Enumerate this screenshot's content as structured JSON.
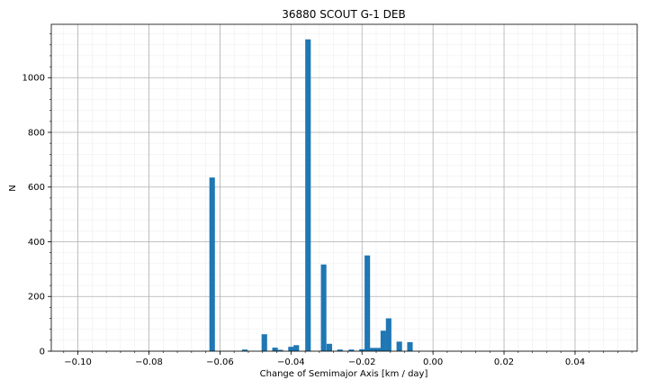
{
  "chart_data": {
    "type": "bar",
    "title": "36880 SCOUT G-1 DEB",
    "xlabel": "Change of Semimajor Axis [km / day]",
    "ylabel": "N",
    "xlim": [
      -0.1075,
      0.0575
    ],
    "ylim": [
      0,
      1195
    ],
    "x_ticks": [
      -0.1,
      -0.08,
      -0.06,
      -0.04,
      -0.02,
      0.0,
      0.02,
      0.04
    ],
    "x_tick_labels": [
      "−0.10",
      "−0.08",
      "−0.06",
      "−0.04",
      "−0.02",
      "0.00",
      "0.02",
      "0.04"
    ],
    "y_ticks": [
      0,
      200,
      400,
      600,
      800,
      1000
    ],
    "y_tick_labels": [
      "0",
      "200",
      "400",
      "600",
      "800",
      "1000"
    ],
    "grid": true,
    "minor_grid": true,
    "bar_color": "#1f77b4",
    "bin_width": 0.00155,
    "bars": [
      {
        "x": -0.0622,
        "value": 635
      },
      {
        "x": -0.053,
        "value": 6
      },
      {
        "x": -0.0475,
        "value": 62
      },
      {
        "x": -0.0445,
        "value": 13
      },
      {
        "x": -0.043,
        "value": 5
      },
      {
        "x": -0.04,
        "value": 16
      },
      {
        "x": -0.0385,
        "value": 22
      },
      {
        "x": -0.0352,
        "value": 1140
      },
      {
        "x": -0.0308,
        "value": 317
      },
      {
        "x": -0.0292,
        "value": 27
      },
      {
        "x": -0.0262,
        "value": 6
      },
      {
        "x": -0.023,
        "value": 6
      },
      {
        "x": -0.02,
        "value": 7
      },
      {
        "x": -0.0185,
        "value": 350
      },
      {
        "x": -0.017,
        "value": 12
      },
      {
        "x": -0.0155,
        "value": 12
      },
      {
        "x": -0.014,
        "value": 75
      },
      {
        "x": -0.0125,
        "value": 120
      },
      {
        "x": -0.0095,
        "value": 35
      },
      {
        "x": -0.0065,
        "value": 33
      }
    ]
  }
}
